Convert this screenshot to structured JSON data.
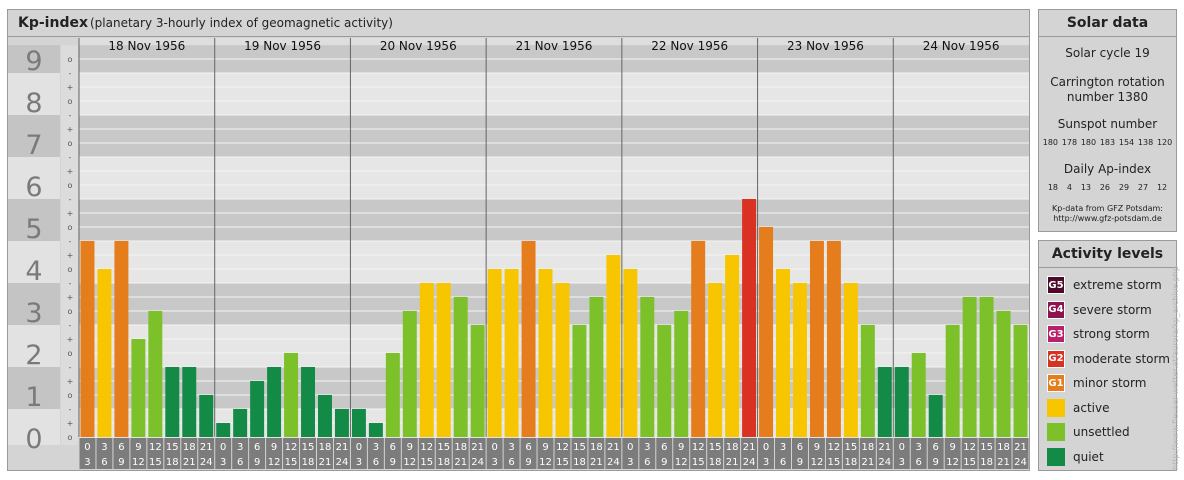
{
  "header": {
    "title": "Kp-index",
    "subtitle": "(planetary 3-hourly index of geomagnetic activity)"
  },
  "chart_data": {
    "type": "bar",
    "y_axis_labels": [
      "0",
      "1",
      "2",
      "3",
      "4",
      "5",
      "6",
      "7",
      "8",
      "9"
    ],
    "y_minor_marks": [
      "o",
      "+",
      "-"
    ],
    "ylim": [
      0,
      9.33
    ],
    "days": [
      "18 Nov 1956",
      "19 Nov 1956",
      "20 Nov 1956",
      "21 Nov 1956",
      "22 Nov 1956",
      "23 Nov 1956",
      "24 Nov 1956"
    ],
    "interval_start_labels": [
      "0",
      "3",
      "6",
      "9",
      "12",
      "15",
      "18",
      "21"
    ],
    "interval_end_labels": [
      "3",
      "6",
      "9",
      "12",
      "15",
      "18",
      "21",
      "24"
    ],
    "values": [
      4.667,
      4.0,
      4.667,
      2.333,
      3.0,
      1.667,
      1.667,
      1.0,
      0.333,
      0.667,
      1.333,
      1.667,
      2.0,
      1.667,
      1.0,
      0.667,
      0.667,
      0.333,
      2.0,
      3.0,
      3.667,
      3.667,
      3.333,
      2.667,
      4.0,
      4.0,
      4.667,
      4.0,
      3.667,
      2.667,
      3.333,
      4.333,
      4.0,
      3.333,
      2.667,
      3.0,
      4.667,
      3.667,
      4.333,
      5.667,
      5.0,
      4.0,
      3.667,
      4.667,
      4.667,
      3.667,
      2.667,
      1.667,
      1.667,
      2.0,
      1.0,
      2.667,
      3.333,
      3.333,
      3.0,
      2.667
    ],
    "colors": {
      "quiet": "#138b46",
      "unsettled": "#7cc02a",
      "active": "#f7c600",
      "minor_storm": "#e57d1d",
      "moderate_storm": "#d93222",
      "strong_storm": "#b8206a",
      "severe_storm": "#8c1450",
      "extreme_storm": "#4e0a2a"
    }
  },
  "solar_data": {
    "title": "Solar data",
    "cycle": "Solar cycle 19",
    "carrington_line1": "Carrington rotation",
    "carrington_line2": "number 1380",
    "sunspot_label": "Sunspot number",
    "sunspot_values": [
      "180",
      "178",
      "180",
      "183",
      "154",
      "138",
      "120"
    ],
    "ap_label": "Daily Ap-index",
    "ap_values": [
      "18",
      "4",
      "13",
      "26",
      "29",
      "27",
      "12"
    ],
    "source_line1": "Kp-data from GFZ Potsdam:",
    "source_line2": "http://www.gfz-potsdam.de"
  },
  "activity_levels": {
    "title": "Activity levels",
    "items": [
      {
        "code": "G5",
        "label": "extreme storm",
        "color": "#4e0a2a"
      },
      {
        "code": "G4",
        "label": "severe storm",
        "color": "#8c1450"
      },
      {
        "code": "G3",
        "label": "strong storm",
        "color": "#b8206a"
      },
      {
        "code": "G2",
        "label": "moderate storm",
        "color": "#d93222"
      },
      {
        "code": "G1",
        "label": "minor storm",
        "color": "#e57d1d"
      },
      {
        "code": "",
        "label": "active",
        "color": "#f7c600"
      },
      {
        "code": "",
        "label": "unsettled",
        "color": "#7cc02a"
      },
      {
        "code": "",
        "label": "quiet",
        "color": "#138b46"
      }
    ]
  },
  "watermark": "http://www.fleuser-wetter.at/aurora/kp_archive.php"
}
